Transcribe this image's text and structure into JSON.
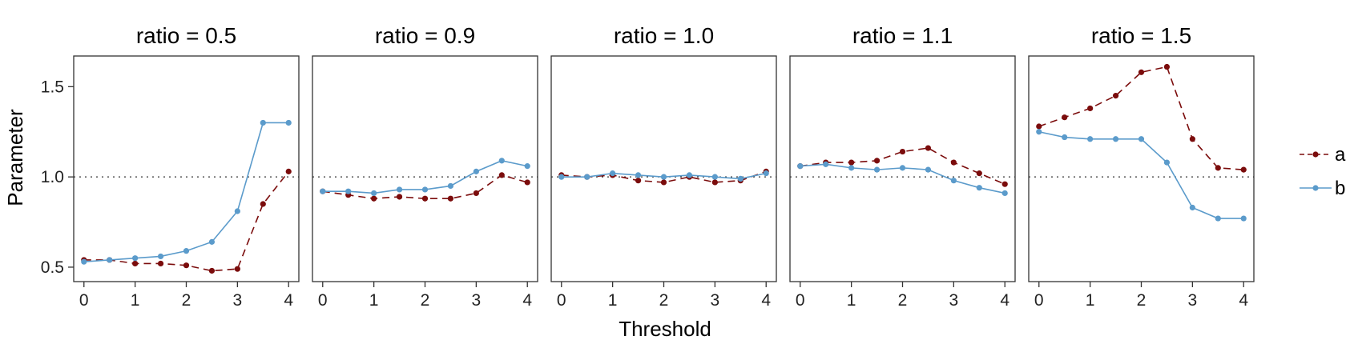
{
  "chart_data": {
    "type": "line",
    "xlabel": "Threshold",
    "ylabel": "Parameter",
    "ylim": [
      0.42,
      1.67
    ],
    "xlim": [
      -0.2,
      4.2
    ],
    "x_ticks": [
      0,
      1,
      2,
      3,
      4
    ],
    "y_ticks": [
      0.5,
      1.0,
      1.5
    ],
    "y_tick_labels": [
      "0.5",
      "1.0",
      "1.5"
    ],
    "reference_line": 1.0,
    "grid": false,
    "legend_position": "right",
    "x": [
      0,
      0.5,
      1,
      1.5,
      2,
      2.5,
      3,
      3.5,
      4
    ],
    "series_styles": [
      {
        "name": "a",
        "color": "#7b0c0c",
        "line": "dashed"
      },
      {
        "name": "b",
        "color": "#5b9bcb",
        "line": "solid"
      }
    ],
    "facets": [
      {
        "title": "ratio = 0.5",
        "series": [
          {
            "name": "a",
            "values": [
              0.54,
              0.54,
              0.52,
              0.52,
              0.51,
              0.48,
              0.49,
              0.85,
              1.03
            ]
          },
          {
            "name": "b",
            "values": [
              0.53,
              0.54,
              0.55,
              0.56,
              0.59,
              0.64,
              0.81,
              1.3,
              1.3
            ]
          }
        ]
      },
      {
        "title": "ratio = 0.9",
        "series": [
          {
            "name": "a",
            "values": [
              0.92,
              0.9,
              0.88,
              0.89,
              0.88,
              0.88,
              0.91,
              1.01,
              0.97
            ]
          },
          {
            "name": "b",
            "values": [
              0.92,
              0.92,
              0.91,
              0.93,
              0.93,
              0.95,
              1.03,
              1.09,
              1.06
            ]
          }
        ]
      },
      {
        "title": "ratio = 1.0",
        "series": [
          {
            "name": "a",
            "values": [
              1.01,
              1.0,
              1.01,
              0.98,
              0.97,
              1.0,
              0.97,
              0.98,
              1.03
            ]
          },
          {
            "name": "b",
            "values": [
              1.0,
              1.0,
              1.02,
              1.01,
              1.0,
              1.01,
              1.0,
              0.99,
              1.02
            ]
          }
        ]
      },
      {
        "title": "ratio = 1.1",
        "series": [
          {
            "name": "a",
            "values": [
              1.06,
              1.08,
              1.08,
              1.09,
              1.14,
              1.16,
              1.08,
              1.02,
              0.96
            ]
          },
          {
            "name": "b",
            "values": [
              1.06,
              1.07,
              1.05,
              1.04,
              1.05,
              1.04,
              0.98,
              0.94,
              0.91
            ]
          }
        ]
      },
      {
        "title": "ratio = 1.5",
        "series": [
          {
            "name": "a",
            "values": [
              1.28,
              1.33,
              1.38,
              1.45,
              1.58,
              1.61,
              1.21,
              1.05,
              1.04
            ]
          },
          {
            "name": "b",
            "values": [
              1.25,
              1.22,
              1.21,
              1.21,
              1.21,
              1.08,
              0.83,
              0.77,
              0.77
            ]
          }
        ]
      }
    ]
  }
}
